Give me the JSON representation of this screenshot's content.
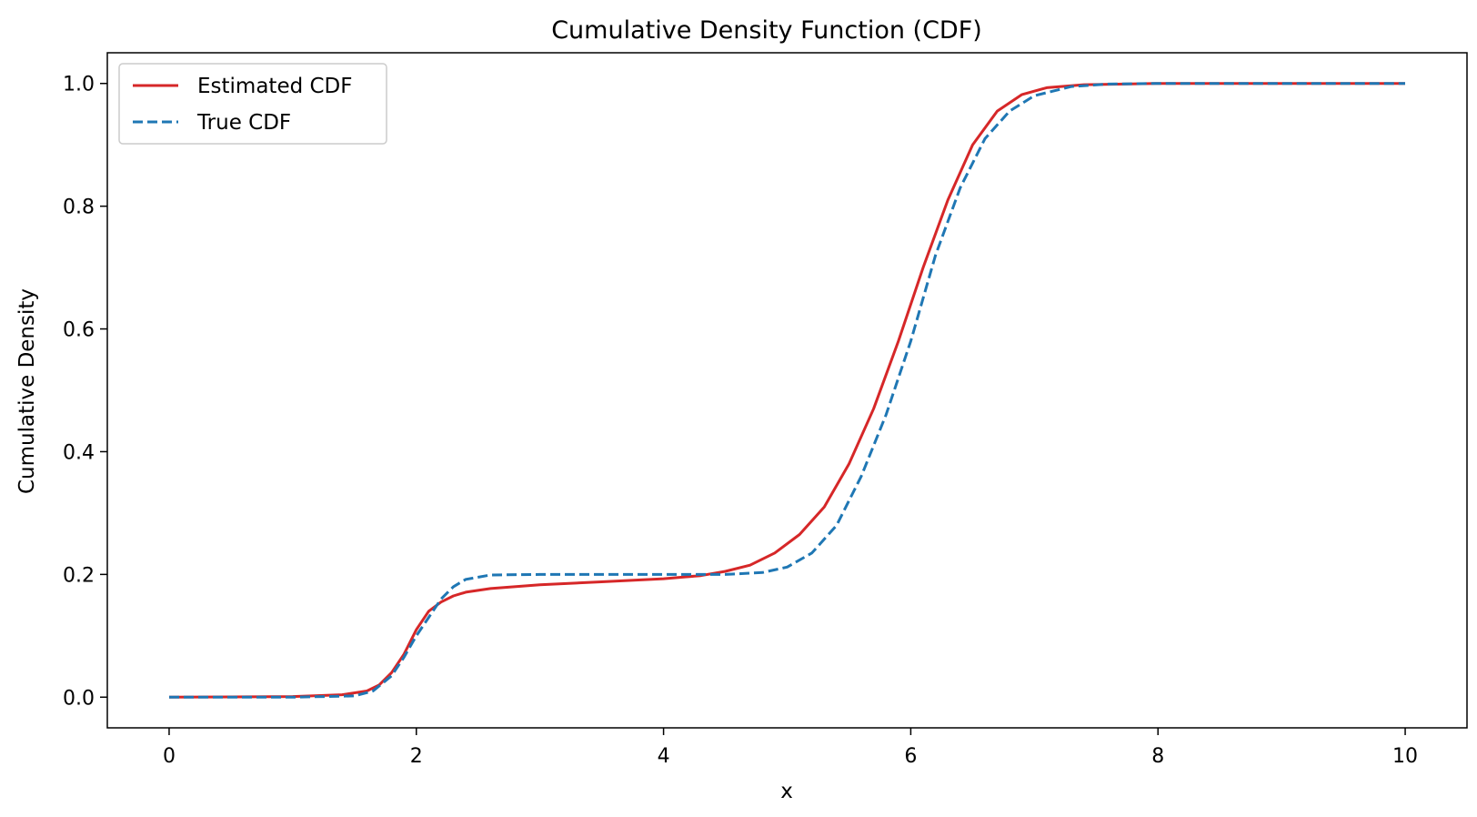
{
  "chart_data": {
    "type": "line",
    "title": "Cumulative Density Function (CDF)",
    "xlabel": "x",
    "ylabel": "Cumulative Density",
    "xlim": [
      -0.5,
      10.5
    ],
    "ylim": [
      -0.05,
      1.05
    ],
    "xticks": [
      0,
      2,
      4,
      6,
      8,
      10
    ],
    "xtick_labels": [
      "0",
      "2",
      "4",
      "6",
      "8",
      "10"
    ],
    "yticks": [
      0.0,
      0.2,
      0.4,
      0.6,
      0.8,
      1.0
    ],
    "ytick_labels": [
      "0.0",
      "0.2",
      "0.4",
      "0.6",
      "0.8",
      "1.0"
    ],
    "grid": false,
    "legend_position": "top-left",
    "series": [
      {
        "name": "Estimated CDF",
        "color": "#d62728",
        "style": "solid",
        "points": [
          [
            0,
            0.0
          ],
          [
            1.0,
            0.001
          ],
          [
            1.4,
            0.004
          ],
          [
            1.6,
            0.01
          ],
          [
            1.7,
            0.02
          ],
          [
            1.8,
            0.04
          ],
          [
            1.9,
            0.07
          ],
          [
            2.0,
            0.11
          ],
          [
            2.1,
            0.14
          ],
          [
            2.2,
            0.155
          ],
          [
            2.3,
            0.165
          ],
          [
            2.4,
            0.171
          ],
          [
            2.6,
            0.177
          ],
          [
            3.0,
            0.183
          ],
          [
            3.5,
            0.188
          ],
          [
            4.0,
            0.193
          ],
          [
            4.3,
            0.198
          ],
          [
            4.5,
            0.205
          ],
          [
            4.7,
            0.215
          ],
          [
            4.9,
            0.235
          ],
          [
            5.1,
            0.265
          ],
          [
            5.3,
            0.31
          ],
          [
            5.5,
            0.38
          ],
          [
            5.7,
            0.47
          ],
          [
            5.9,
            0.58
          ],
          [
            6.1,
            0.7
          ],
          [
            6.3,
            0.81
          ],
          [
            6.5,
            0.9
          ],
          [
            6.7,
            0.955
          ],
          [
            6.9,
            0.982
          ],
          [
            7.1,
            0.993
          ],
          [
            7.4,
            0.998
          ],
          [
            8.0,
            1.0
          ],
          [
            10.0,
            1.0
          ]
        ]
      },
      {
        "name": "True CDF",
        "color": "#1f77b4",
        "style": "dashed",
        "points": [
          [
            0,
            0.0
          ],
          [
            1.0,
            0.0
          ],
          [
            1.5,
            0.002
          ],
          [
            1.65,
            0.01
          ],
          [
            1.8,
            0.035
          ],
          [
            1.9,
            0.065
          ],
          [
            2.0,
            0.1
          ],
          [
            2.1,
            0.13
          ],
          [
            2.2,
            0.16
          ],
          [
            2.3,
            0.18
          ],
          [
            2.4,
            0.192
          ],
          [
            2.6,
            0.199
          ],
          [
            3.0,
            0.2
          ],
          [
            4.5,
            0.2
          ],
          [
            4.8,
            0.203
          ],
          [
            5.0,
            0.212
          ],
          [
            5.2,
            0.235
          ],
          [
            5.4,
            0.28
          ],
          [
            5.6,
            0.36
          ],
          [
            5.8,
            0.46
          ],
          [
            6.0,
            0.58
          ],
          [
            6.2,
            0.72
          ],
          [
            6.4,
            0.83
          ],
          [
            6.6,
            0.91
          ],
          [
            6.8,
            0.955
          ],
          [
            7.0,
            0.98
          ],
          [
            7.3,
            0.995
          ],
          [
            7.6,
            0.999
          ],
          [
            8.0,
            1.0
          ],
          [
            10.0,
            1.0
          ]
        ]
      }
    ]
  }
}
